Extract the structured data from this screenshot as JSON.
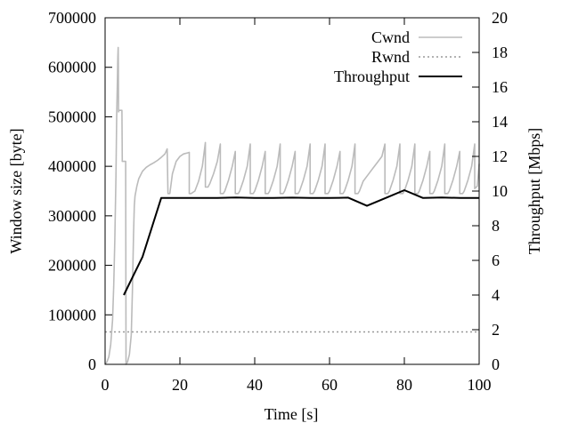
{
  "chart_data": {
    "type": "line",
    "title": "",
    "xlabel": "Time [s]",
    "ylabel_left": "Window size [byte]",
    "ylabel_right": "Throughput [Mbps]",
    "xlim": [
      0,
      100
    ],
    "ylim_left": [
      0,
      700000
    ],
    "ylim_right": [
      0,
      20
    ],
    "xticks": [
      0,
      20,
      40,
      60,
      80,
      100
    ],
    "yticks_left": [
      0,
      100000,
      200000,
      300000,
      400000,
      500000,
      600000,
      700000
    ],
    "yticks_right": [
      0,
      2,
      4,
      6,
      8,
      10,
      12,
      14,
      16,
      18,
      20
    ],
    "grid": false,
    "legend_position": "top-right",
    "series": [
      {
        "name": "Cwnd",
        "axis": "left",
        "style": "solid",
        "color": "#bbbbbb",
        "x": [
          0,
          0.5,
          1,
          1.5,
          2,
          2.3,
          2.6,
          2.9,
          3.1,
          3.3,
          3.4,
          3.5,
          3.55,
          3.6,
          3.7,
          3.8,
          4.5,
          4.6,
          5.5,
          5.6,
          6,
          6.5,
          7,
          7.3,
          7.6,
          7.8,
          8,
          8.5,
          9,
          10,
          11,
          12,
          13,
          14,
          15,
          16,
          16.6,
          16.8,
          17.3,
          18,
          19,
          20,
          21,
          22,
          22.5,
          22.5,
          23,
          24,
          25,
          26,
          26.8,
          26.8,
          27.5,
          28,
          29,
          30,
          30.8,
          30.8,
          31.6,
          32,
          33,
          34,
          34.8,
          34.8,
          35.6,
          36,
          37,
          38,
          38.8,
          38.8,
          39.6,
          40,
          41,
          42,
          42.8,
          42.8,
          43.6,
          44,
          45,
          46,
          46.8,
          46.8,
          47.6,
          48,
          49,
          50,
          50.8,
          50.8,
          51.6,
          52,
          53,
          54,
          54.8,
          54.8,
          55.6,
          56,
          57,
          58,
          58.8,
          58.8,
          59.6,
          60,
          61,
          62,
          62.8,
          62.8,
          63.6,
          64,
          65,
          66,
          66.8,
          66.8,
          67.6,
          68,
          69,
          70,
          71,
          72,
          73,
          74,
          74.8,
          74.8,
          75.6,
          76,
          77,
          78,
          78.8,
          78.8,
          79.6,
          80,
          81,
          82,
          82.8,
          82.8,
          83.6,
          84,
          85,
          86,
          86.8,
          86.8,
          87.6,
          88,
          89,
          90,
          90.8,
          90.8,
          91.6,
          92,
          93,
          94,
          94.8,
          94.8,
          95.6,
          96,
          97,
          98,
          98.8,
          98.8,
          99.5,
          100
        ],
        "y": [
          0,
          5000,
          15000,
          40000,
          90000,
          160000,
          250000,
          380000,
          500000,
          580000,
          620000,
          640000,
          600000,
          510000,
          513000,
          513000,
          513000,
          410000,
          410000,
          0,
          5000,
          20000,
          60000,
          150000,
          260000,
          320000,
          340000,
          360000,
          375000,
          390000,
          398000,
          403000,
          407000,
          412000,
          418000,
          425000,
          435000,
          345000,
          345000,
          385000,
          410000,
          420000,
          425000,
          427000,
          428000,
          345000,
          345000,
          350000,
          370000,
          400000,
          448000,
          358000,
          358000,
          365000,
          385000,
          410000,
          445000,
          345000,
          345000,
          350000,
          372000,
          400000,
          430000,
          345000,
          345000,
          350000,
          372000,
          400000,
          445000,
          345000,
          345000,
          350000,
          372000,
          400000,
          430000,
          345000,
          345000,
          350000,
          372000,
          400000,
          445000,
          345000,
          345000,
          350000,
          372000,
          400000,
          430000,
          345000,
          345000,
          350000,
          372000,
          400000,
          445000,
          345000,
          345000,
          350000,
          372000,
          400000,
          445000,
          345000,
          345000,
          350000,
          372000,
          400000,
          430000,
          345000,
          345000,
          350000,
          372000,
          400000,
          445000,
          345000,
          345000,
          350000,
          370000,
          380000,
          390000,
          400000,
          410000,
          420000,
          445000,
          345000,
          345000,
          350000,
          372000,
          400000,
          445000,
          345000,
          345000,
          350000,
          372000,
          400000,
          445000,
          345000,
          345000,
          350000,
          372000,
          400000,
          430000,
          345000,
          345000,
          350000,
          372000,
          400000,
          445000,
          345000,
          345000,
          350000,
          372000,
          400000,
          430000,
          345000,
          345000,
          350000,
          372000,
          400000,
          445000,
          355000,
          360000,
          405000
        ]
      },
      {
        "name": "Rwnd",
        "axis": "left",
        "style": "dotted",
        "color": "#999999",
        "x": [
          0,
          100
        ],
        "y": [
          65535,
          65535
        ]
      },
      {
        "name": "Throughput",
        "axis": "right",
        "style": "solid",
        "color": "#000000",
        "x": [
          5,
          10,
          15,
          20,
          25,
          30,
          35,
          40,
          45,
          50,
          55,
          60,
          65,
          70,
          75,
          80,
          85,
          90,
          95,
          100
        ],
        "y": [
          4.0,
          6.2,
          9.6,
          9.6,
          9.6,
          9.6,
          9.63,
          9.6,
          9.6,
          9.62,
          9.6,
          9.6,
          9.62,
          9.15,
          9.6,
          10.05,
          9.6,
          9.63,
          9.6,
          9.6
        ]
      }
    ]
  }
}
